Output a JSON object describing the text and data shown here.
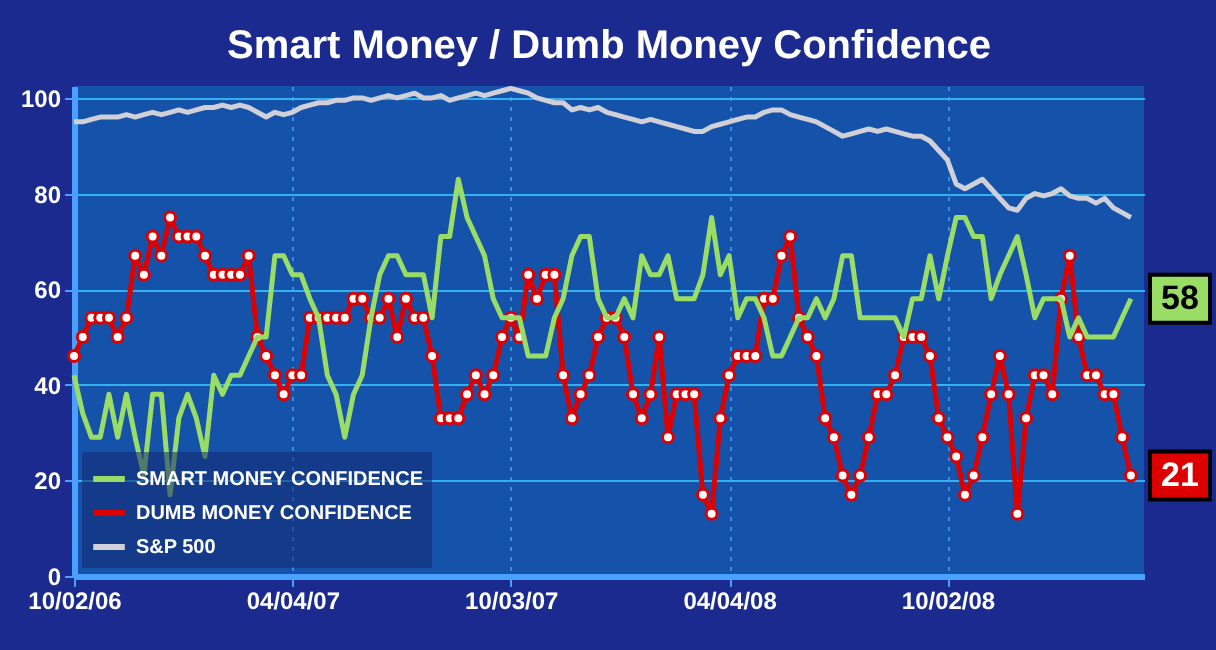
{
  "chart_data": {
    "type": "line",
    "title": "Smart Money / Dumb Money Confidence",
    "categories": [
      "10/02/06",
      null,
      null,
      null,
      null,
      null,
      null,
      null,
      null,
      null,
      null,
      null,
      null,
      null,
      null,
      null,
      null,
      null,
      null,
      null,
      null,
      null,
      null,
      null,
      null,
      "04/04/07",
      null,
      null,
      null,
      null,
      null,
      null,
      null,
      null,
      null,
      null,
      null,
      null,
      null,
      null,
      null,
      null,
      null,
      null,
      null,
      null,
      null,
      null,
      null,
      null,
      "10/03/07",
      null,
      null,
      null,
      null,
      null,
      null,
      null,
      null,
      null,
      null,
      null,
      null,
      null,
      null,
      null,
      null,
      null,
      null,
      null,
      null,
      null,
      null,
      null,
      null,
      "04/04/08",
      null,
      null,
      null,
      null,
      null,
      null,
      null,
      null,
      null,
      null,
      null,
      null,
      null,
      null,
      null,
      null,
      null,
      null,
      null,
      null,
      null,
      null,
      null,
      null,
      "10/02/08",
      null,
      null,
      null,
      null,
      null,
      null,
      null,
      null,
      null,
      null,
      null,
      null,
      null,
      null,
      null,
      null,
      null,
      null,
      null,
      null,
      null
    ],
    "series": [
      {
        "name": "SMART MONEY CONFIDENCE",
        "color": "#99dd66",
        "values": [
          42,
          34,
          29,
          29,
          38,
          29,
          38,
          29,
          21,
          38,
          38,
          17,
          33,
          38,
          33,
          25,
          42,
          38,
          42,
          42,
          46,
          50,
          50,
          67,
          67,
          63,
          63,
          58,
          54,
          42,
          38,
          29,
          38,
          42,
          54,
          63,
          67,
          67,
          63,
          63,
          63,
          54,
          71,
          71,
          83,
          75,
          71,
          67,
          58,
          54,
          54,
          54,
          46,
          46,
          46,
          54,
          58,
          67,
          71,
          71,
          58,
          54,
          54,
          58,
          54,
          67,
          63,
          63,
          67,
          58,
          58,
          58,
          63,
          75,
          63,
          67,
          54,
          58,
          58,
          54,
          46,
          46,
          50,
          54,
          54,
          58,
          54,
          58,
          67,
          67,
          54,
          54,
          54,
          54,
          54,
          50,
          58,
          58,
          67,
          58,
          67,
          75,
          75,
          71,
          71,
          58,
          63,
          67,
          71,
          63,
          54,
          58,
          58,
          58,
          50,
          54,
          50,
          50,
          50,
          50,
          54,
          58
        ]
      },
      {
        "name": "DUMB MONEY CONFIDENCE",
        "color": "#dd0000",
        "marker": "circle",
        "values": [
          46,
          50,
          54,
          54,
          54,
          50,
          54,
          67,
          63,
          71,
          67,
          75,
          71,
          71,
          71,
          67,
          63,
          63,
          63,
          63,
          67,
          50,
          46,
          42,
          38,
          42,
          42,
          54,
          54,
          54,
          54,
          54,
          58,
          58,
          54,
          54,
          58,
          50,
          58,
          54,
          54,
          46,
          33,
          33,
          33,
          38,
          42,
          38,
          42,
          50,
          54,
          50,
          63,
          58,
          63,
          63,
          42,
          33,
          38,
          42,
          50,
          54,
          54,
          50,
          38,
          33,
          38,
          50,
          29,
          38,
          38,
          38,
          17,
          13,
          33,
          42,
          46,
          46,
          46,
          58,
          58,
          67,
          71,
          54,
          50,
          46,
          33,
          29,
          21,
          17,
          21,
          29,
          38,
          38,
          42,
          50,
          50,
          50,
          46,
          33,
          29,
          25,
          17,
          21,
          29,
          38,
          46,
          38,
          13,
          33,
          42,
          42,
          38,
          58,
          67,
          50,
          42,
          42,
          38,
          38,
          29,
          21
        ]
      },
      {
        "name": "S&P 500",
        "color": "#d0d0d8",
        "values": [
          95,
          95,
          95.5,
          96,
          96,
          96,
          96.5,
          96,
          96.5,
          97,
          96.5,
          97,
          97.5,
          97,
          97.5,
          98,
          98,
          98.5,
          98,
          98.5,
          98,
          97,
          96,
          97,
          96.5,
          97,
          98,
          98.5,
          99,
          99,
          99.5,
          99.5,
          100,
          100,
          99.5,
          100,
          100.5,
          100,
          100.5,
          101,
          100,
          100,
          100.5,
          99.5,
          100,
          100.5,
          101,
          100.5,
          101,
          101.5,
          102,
          101.5,
          101,
          100,
          99.5,
          99,
          99,
          97.5,
          98,
          97.5,
          98,
          97,
          96.5,
          96,
          95.5,
          95,
          95.5,
          95,
          94.5,
          94,
          93.5,
          93,
          93,
          94,
          94.5,
          95,
          95.5,
          96,
          96,
          97,
          97.5,
          97.5,
          96.5,
          96,
          95.5,
          95,
          94,
          93,
          92,
          92.5,
          93,
          93.5,
          93,
          93.5,
          93,
          92.5,
          92,
          92,
          91,
          89,
          87,
          82,
          81,
          82,
          83,
          81,
          79,
          77,
          76.5,
          79,
          80,
          79.5,
          80,
          81,
          79.5,
          79,
          79,
          78,
          79,
          77,
          76,
          75
        ]
      }
    ],
    "ylim": [
      0,
      102.5
    ],
    "yticks": [
      0,
      20,
      40,
      60,
      80,
      100
    ],
    "grid": true,
    "legend": "bottom left",
    "annotations": [
      "58",
      "21"
    ]
  }
}
